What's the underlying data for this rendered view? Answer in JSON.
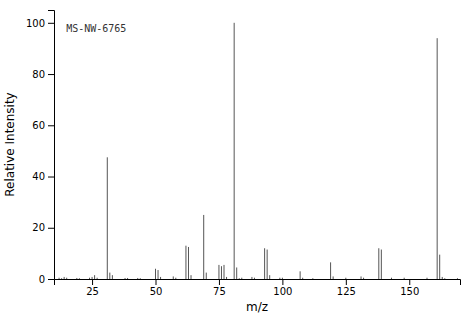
{
  "chart_data": {
    "type": "stem",
    "title": "MS-NW-6765",
    "xlabel": "m/z",
    "ylabel": "Relative Intensity",
    "x": [
      12,
      13,
      14,
      15,
      19,
      20,
      24,
      25,
      26,
      27,
      31,
      32,
      33,
      38,
      39,
      43,
      44,
      50,
      51,
      52,
      57,
      58,
      62,
      63,
      64,
      69,
      70,
      75,
      76,
      77,
      78,
      81,
      82,
      83,
      84,
      88,
      89,
      93,
      94,
      95,
      99,
      100,
      107,
      108,
      112,
      119,
      120,
      125,
      131,
      132,
      138,
      139,
      143,
      148,
      157,
      161,
      162,
      163,
      164,
      169
    ],
    "values": [
      0.5,
      0.3,
      0.8,
      0.5,
      0.4,
      0.3,
      0.5,
      0.8,
      1.5,
      0.5,
      47.5,
      2.5,
      1.5,
      0.4,
      0.4,
      0.4,
      0.3,
      4.0,
      3.5,
      0.8,
      1.0,
      0.5,
      13.0,
      12.5,
      1.5,
      25.0,
      2.5,
      5.5,
      5.0,
      5.5,
      0.8,
      100.0,
      4.5,
      0.3,
      0.5,
      0.8,
      0.5,
      12.0,
      11.5,
      1.5,
      0.5,
      0.5,
      3.0,
      0.5,
      0.3,
      6.5,
      1.0,
      0.5,
      1.0,
      0.5,
      12.0,
      11.5,
      0.5,
      0.5,
      0.5,
      94.0,
      9.5,
      0.8,
      0.3,
      0.3
    ],
    "color": "#555555",
    "xlim": [
      10,
      170
    ],
    "ylim": [
      0,
      105
    ],
    "xticks": [
      25,
      50,
      75,
      100,
      125,
      150
    ],
    "yticks": [
      0,
      20,
      40,
      60,
      80,
      100
    ],
    "grid": false
  }
}
